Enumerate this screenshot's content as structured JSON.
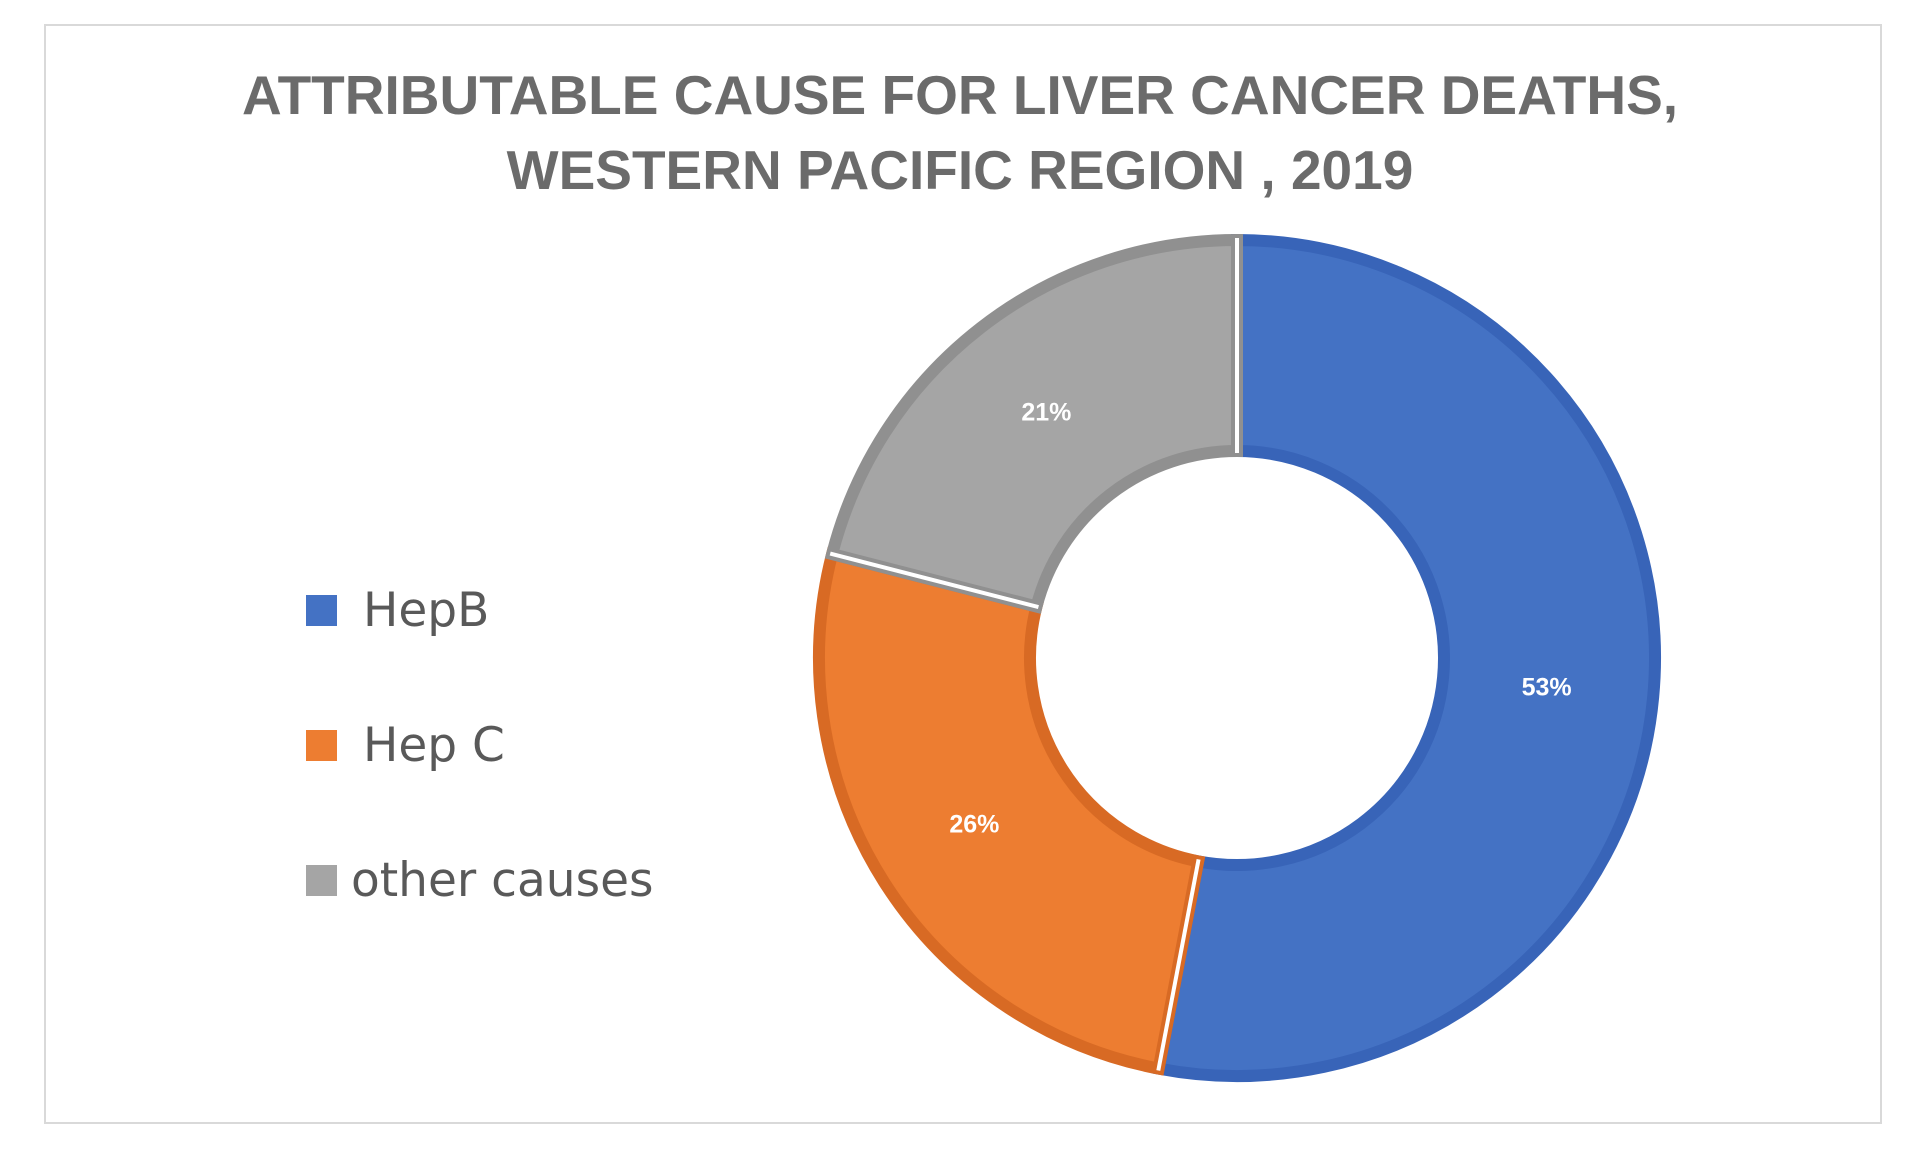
{
  "chart_data": {
    "type": "pie",
    "variant": "donut",
    "title_lines": [
      "ATTRIBUTABLE CAUSE FOR LIVER CANCER DEATHS,",
      "WESTERN PACIFIC REGION , 2019"
    ],
    "categories": [
      "HepB",
      "Hep C",
      "other causes"
    ],
    "values": [
      53,
      26,
      21
    ],
    "labels": [
      "53%",
      "26%",
      "21%"
    ],
    "colors": [
      "#4472c4",
      "#ed7d31",
      "#a5a5a5"
    ],
    "border_colors": [
      "#3864b8",
      "#d86a24",
      "#909090"
    ],
    "legend_position": "left",
    "start_angle": "12 o'clock, clockwise"
  }
}
